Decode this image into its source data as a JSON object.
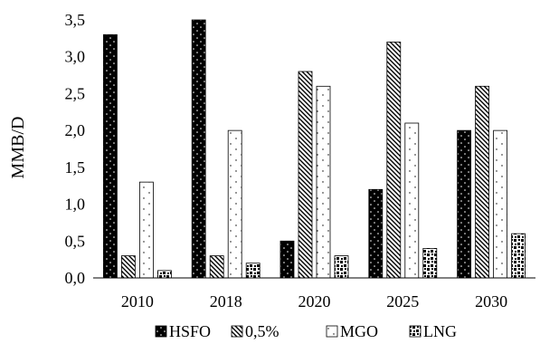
{
  "chart_data": {
    "type": "bar",
    "title": "",
    "xlabel": "",
    "ylabel": "MMB/D",
    "ylim": [
      0,
      3.5
    ],
    "yticks": [
      "0,0",
      "0,5",
      "1,0",
      "1,5",
      "2,0",
      "2,5",
      "3,0",
      "3,5"
    ],
    "grid": false,
    "legend_position": "bottom",
    "categories": [
      "2010",
      "2018",
      "2020",
      "2025",
      "2030"
    ],
    "series": [
      {
        "name": "HSFO",
        "pattern": "dotted-black",
        "values": [
          3.3,
          3.5,
          0.5,
          1.2,
          2.0
        ]
      },
      {
        "name": "0,5%",
        "pattern": "diagonal-hatch",
        "values": [
          0.3,
          0.3,
          2.8,
          3.2,
          2.6
        ]
      },
      {
        "name": "MGO",
        "pattern": "white-dots",
        "values": [
          1.3,
          2.0,
          2.6,
          2.1,
          2.0
        ]
      },
      {
        "name": "LNG",
        "pattern": "checker-dots",
        "values": [
          0.1,
          0.2,
          0.3,
          0.4,
          0.6
        ]
      }
    ]
  }
}
